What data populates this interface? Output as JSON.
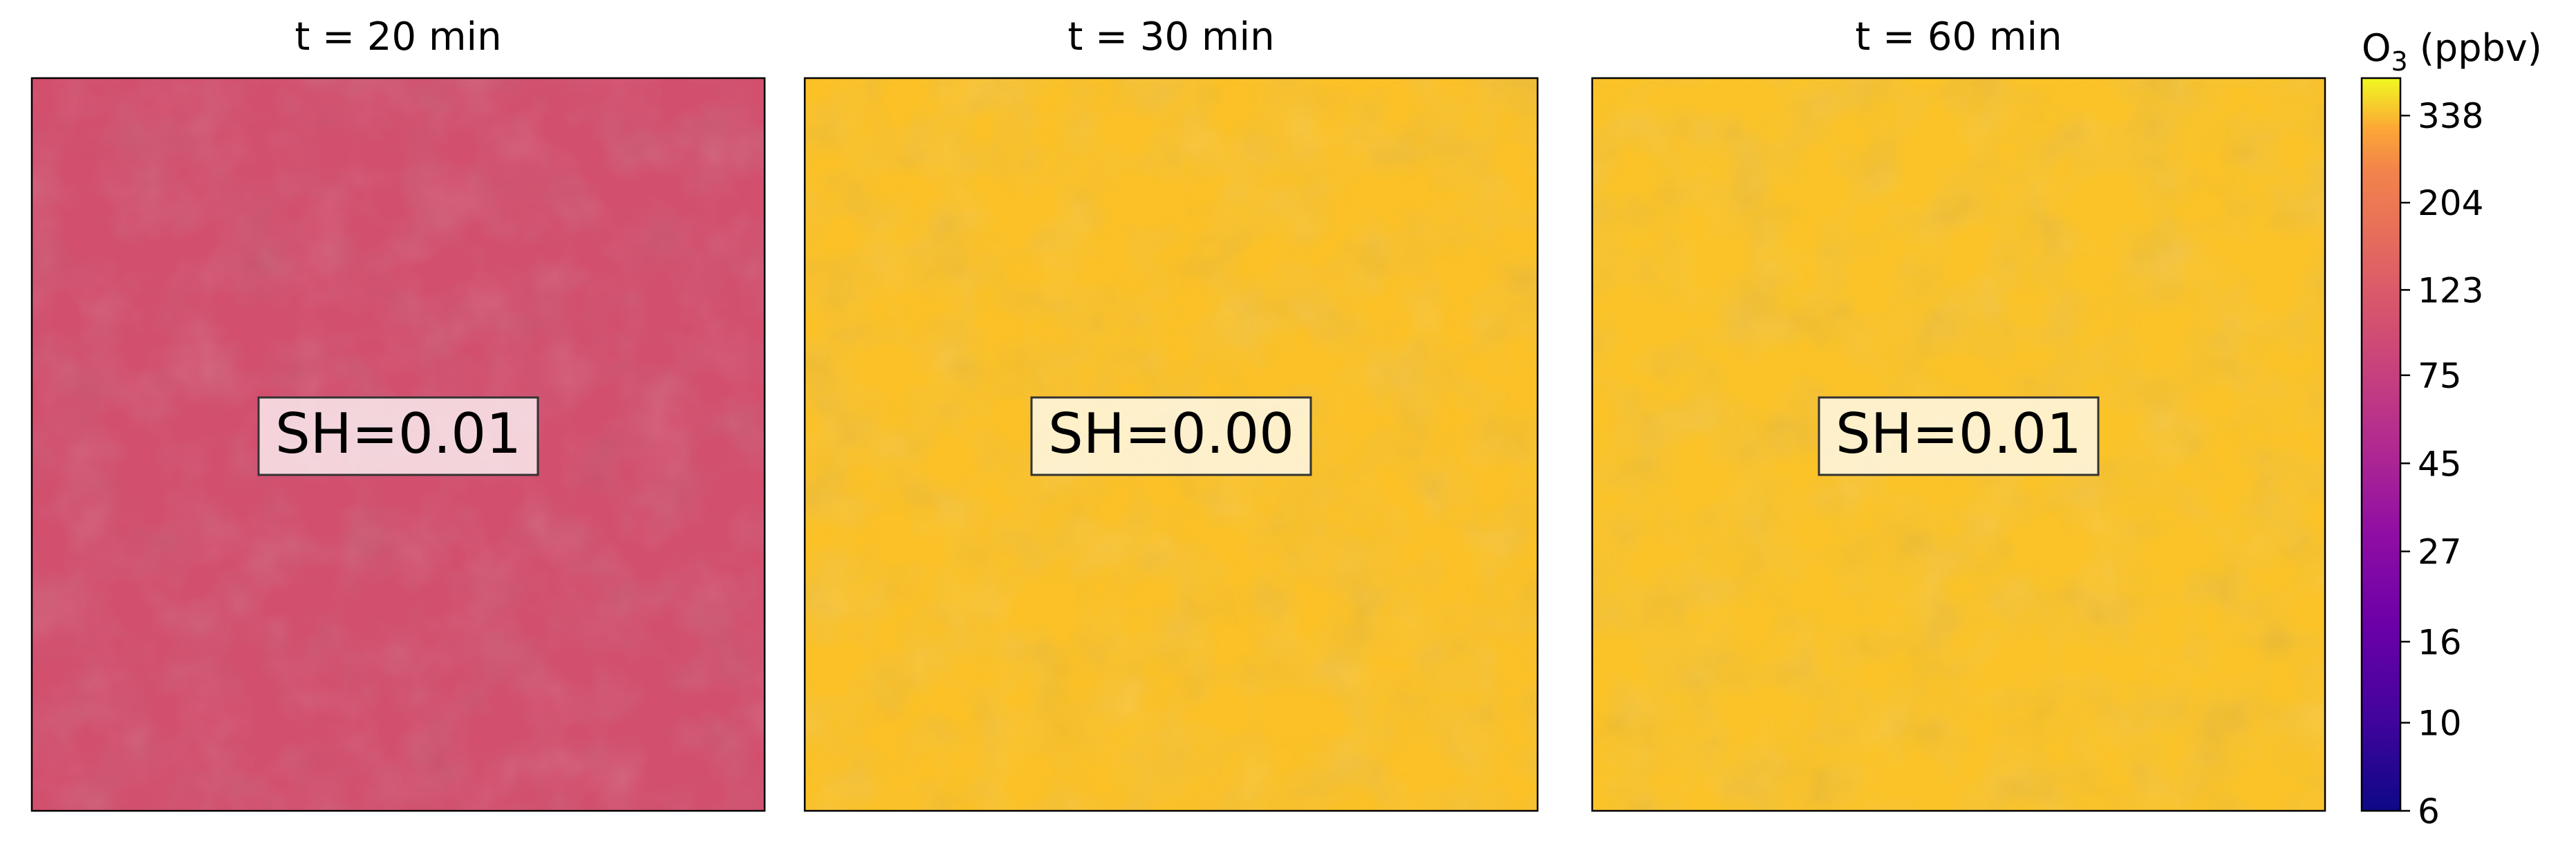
{
  "chart_data": {
    "type": "heatmap",
    "panels": [
      {
        "title": "t = 20 min",
        "annotation": "SH=0.01",
        "fill_color": "#d24f6e",
        "approx_value_ppbv": 58
      },
      {
        "title": "t = 30 min",
        "annotation": "SH=0.00",
        "fill_color": "#fbc126",
        "approx_value_ppbv": 270
      },
      {
        "title": "t = 60 min",
        "annotation": "SH=0.01",
        "fill_color": "#fbc327",
        "approx_value_ppbv": 290
      }
    ],
    "colorbar": {
      "label_main": "O",
      "label_sub": "3",
      "label_unit": " (ppbv)",
      "scale": "log",
      "range": [
        6,
        420
      ],
      "ticks": [
        6,
        10,
        16,
        27,
        45,
        75,
        123,
        204,
        338
      ],
      "colormap": "plasma"
    },
    "grid": false,
    "axis_ticks": false
  }
}
